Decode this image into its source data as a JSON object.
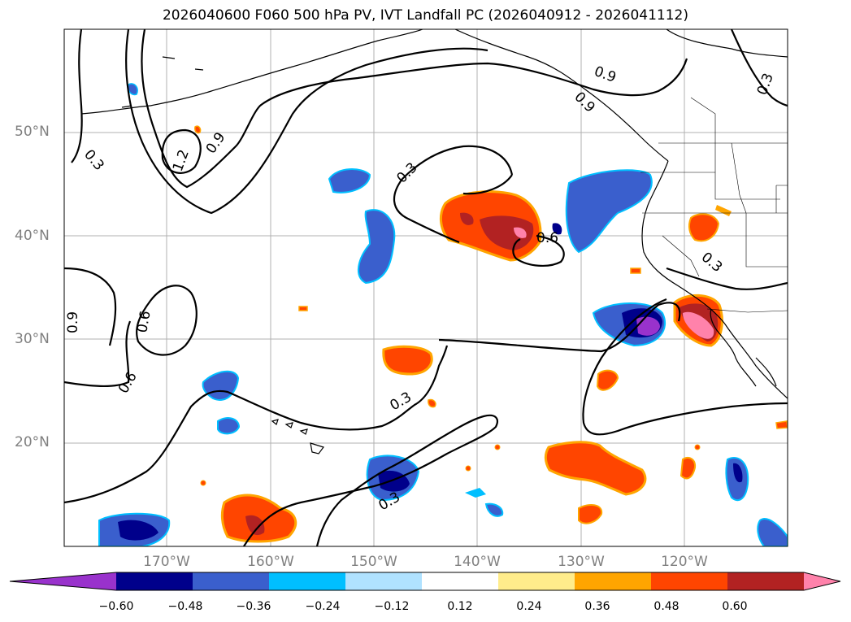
{
  "title": "2026040600 F060 500 hPa PV, IVT Landfall PC (2026040912 - 2026041112)",
  "lat_labels": [
    "50°N",
    "40°N",
    "30°N",
    "20°N"
  ],
  "lon_labels": [
    "170°W",
    "160°W",
    "150°W",
    "140°W",
    "130°W",
    "120°W"
  ],
  "contour_labels": [
    "0.3",
    "1.2",
    "0.9",
    "0.3",
    "0.9",
    "0.9",
    "0.3",
    "0.6",
    "0.3",
    "0.9",
    "0.6",
    "0.6",
    "0.3",
    "0.3"
  ],
  "colorbar": {
    "ticks": [
      "−0.60",
      "−0.48",
      "−0.36",
      "−0.24",
      "−0.12",
      "0.12",
      "0.24",
      "0.36",
      "0.48",
      "0.60"
    ],
    "colors": [
      "#9932cc",
      "#00008b",
      "#3a5fcd",
      "#00bfff",
      "#b0e2ff",
      "#ffffff",
      "#ffec8b",
      "#ffa500",
      "#ff4500",
      "#b22222",
      "#ff82ab"
    ]
  }
}
